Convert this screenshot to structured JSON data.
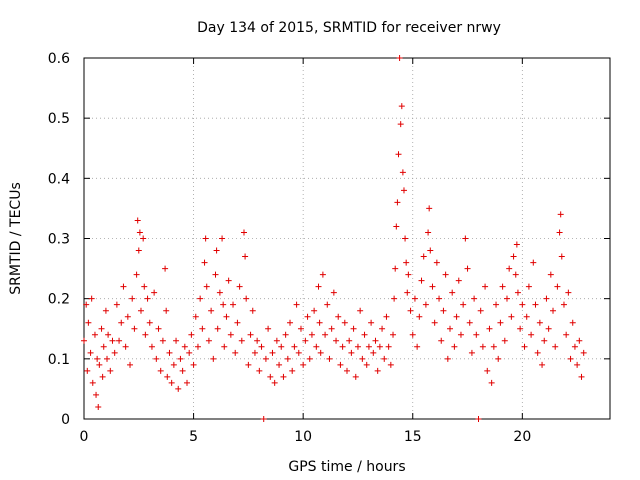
{
  "chart_data": {
    "type": "scatter",
    "title": "Day 134 of 2015, SRMTID for receiver nrwy",
    "xlabel": "GPS time / hours",
    "ylabel": "SRMTID / TECUs",
    "xlim": [
      0,
      24
    ],
    "ylim": [
      0,
      0.6
    ],
    "xticks": [
      0,
      5,
      10,
      15,
      20
    ],
    "xtick_labels": [
      "0",
      "5",
      "10",
      "15",
      "20"
    ],
    "yticks": [
      0,
      0.1,
      0.2,
      0.3,
      0.4,
      0.5,
      0.6
    ],
    "ytick_labels": [
      "0",
      "0.1",
      "0.2",
      "0.3",
      "0.4",
      "0.5",
      "0.6"
    ],
    "grid": true,
    "marker": "+",
    "color": "#e00000",
    "series": [
      {
        "name": "SRMTID",
        "points": [
          [
            0.0,
            0.13
          ],
          [
            0.1,
            0.19
          ],
          [
            0.15,
            0.08
          ],
          [
            0.2,
            0.16
          ],
          [
            0.3,
            0.11
          ],
          [
            0.35,
            0.2
          ],
          [
            0.4,
            0.06
          ],
          [
            0.5,
            0.14
          ],
          [
            0.55,
            0.04
          ],
          [
            0.6,
            0.1
          ],
          [
            0.65,
            0.02
          ],
          [
            0.7,
            0.09
          ],
          [
            0.8,
            0.15
          ],
          [
            0.85,
            0.07
          ],
          [
            0.9,
            0.12
          ],
          [
            1.0,
            0.18
          ],
          [
            1.05,
            0.1
          ],
          [
            1.1,
            0.14
          ],
          [
            1.2,
            0.08
          ],
          [
            1.3,
            0.13
          ],
          [
            1.4,
            0.11
          ],
          [
            1.5,
            0.19
          ],
          [
            1.6,
            0.13
          ],
          [
            1.7,
            0.16
          ],
          [
            1.8,
            0.22
          ],
          [
            1.9,
            0.12
          ],
          [
            2.0,
            0.17
          ],
          [
            2.1,
            0.09
          ],
          [
            2.2,
            0.2
          ],
          [
            2.3,
            0.15
          ],
          [
            2.4,
            0.24
          ],
          [
            2.45,
            0.33
          ],
          [
            2.5,
            0.28
          ],
          [
            2.55,
            0.31
          ],
          [
            2.6,
            0.18
          ],
          [
            2.7,
            0.3
          ],
          [
            2.75,
            0.22
          ],
          [
            2.8,
            0.14
          ],
          [
            2.9,
            0.2
          ],
          [
            3.0,
            0.16
          ],
          [
            3.1,
            0.12
          ],
          [
            3.2,
            0.21
          ],
          [
            3.3,
            0.1
          ],
          [
            3.4,
            0.15
          ],
          [
            3.5,
            0.08
          ],
          [
            3.6,
            0.13
          ],
          [
            3.7,
            0.25
          ],
          [
            3.75,
            0.18
          ],
          [
            3.8,
            0.07
          ],
          [
            3.9,
            0.11
          ],
          [
            4.0,
            0.06
          ],
          [
            4.1,
            0.09
          ],
          [
            4.2,
            0.13
          ],
          [
            4.3,
            0.05
          ],
          [
            4.4,
            0.1
          ],
          [
            4.5,
            0.08
          ],
          [
            4.6,
            0.12
          ],
          [
            4.7,
            0.06
          ],
          [
            4.8,
            0.11
          ],
          [
            4.9,
            0.14
          ],
          [
            5.0,
            0.09
          ],
          [
            5.1,
            0.17
          ],
          [
            5.2,
            0.12
          ],
          [
            5.3,
            0.2
          ],
          [
            5.4,
            0.15
          ],
          [
            5.5,
            0.26
          ],
          [
            5.55,
            0.3
          ],
          [
            5.6,
            0.22
          ],
          [
            5.7,
            0.13
          ],
          [
            5.8,
            0.18
          ],
          [
            5.9,
            0.1
          ],
          [
            6.0,
            0.24
          ],
          [
            6.05,
            0.28
          ],
          [
            6.1,
            0.15
          ],
          [
            6.2,
            0.21
          ],
          [
            6.3,
            0.3
          ],
          [
            6.35,
            0.19
          ],
          [
            6.4,
            0.12
          ],
          [
            6.5,
            0.17
          ],
          [
            6.6,
            0.23
          ],
          [
            6.7,
            0.14
          ],
          [
            6.8,
            0.19
          ],
          [
            6.9,
            0.11
          ],
          [
            7.0,
            0.16
          ],
          [
            7.1,
            0.22
          ],
          [
            7.2,
            0.13
          ],
          [
            7.3,
            0.31
          ],
          [
            7.35,
            0.27
          ],
          [
            7.4,
            0.2
          ],
          [
            7.5,
            0.09
          ],
          [
            7.6,
            0.14
          ],
          [
            7.7,
            0.18
          ],
          [
            7.8,
            0.11
          ],
          [
            7.9,
            0.13
          ],
          [
            8.0,
            0.08
          ],
          [
            8.1,
            0.12
          ],
          [
            8.2,
            0.0
          ],
          [
            8.3,
            0.1
          ],
          [
            8.4,
            0.15
          ],
          [
            8.5,
            0.07
          ],
          [
            8.6,
            0.11
          ],
          [
            8.7,
            0.06
          ],
          [
            8.8,
            0.13
          ],
          [
            8.9,
            0.09
          ],
          [
            9.0,
            0.12
          ],
          [
            9.1,
            0.07
          ],
          [
            9.2,
            0.14
          ],
          [
            9.3,
            0.1
          ],
          [
            9.4,
            0.16
          ],
          [
            9.5,
            0.08
          ],
          [
            9.6,
            0.12
          ],
          [
            9.7,
            0.19
          ],
          [
            9.8,
            0.11
          ],
          [
            9.9,
            0.15
          ],
          [
            10.0,
            0.09
          ],
          [
            10.1,
            0.13
          ],
          [
            10.2,
            0.17
          ],
          [
            10.3,
            0.1
          ],
          [
            10.4,
            0.14
          ],
          [
            10.5,
            0.18
          ],
          [
            10.6,
            0.12
          ],
          [
            10.7,
            0.22
          ],
          [
            10.75,
            0.16
          ],
          [
            10.8,
            0.11
          ],
          [
            10.9,
            0.24
          ],
          [
            11.0,
            0.14
          ],
          [
            11.1,
            0.19
          ],
          [
            11.2,
            0.1
          ],
          [
            11.3,
            0.15
          ],
          [
            11.4,
            0.21
          ],
          [
            11.5,
            0.13
          ],
          [
            11.6,
            0.17
          ],
          [
            11.7,
            0.09
          ],
          [
            11.8,
            0.12
          ],
          [
            11.9,
            0.16
          ],
          [
            12.0,
            0.08
          ],
          [
            12.1,
            0.13
          ],
          [
            12.2,
            0.11
          ],
          [
            12.3,
            0.15
          ],
          [
            12.4,
            0.07
          ],
          [
            12.5,
            0.12
          ],
          [
            12.6,
            0.18
          ],
          [
            12.7,
            0.1
          ],
          [
            12.8,
            0.14
          ],
          [
            12.9,
            0.09
          ],
          [
            13.0,
            0.12
          ],
          [
            13.1,
            0.16
          ],
          [
            13.2,
            0.11
          ],
          [
            13.3,
            0.13
          ],
          [
            13.4,
            0.08
          ],
          [
            13.5,
            0.12
          ],
          [
            13.6,
            0.15
          ],
          [
            13.7,
            0.1
          ],
          [
            13.8,
            0.17
          ],
          [
            13.9,
            0.12
          ],
          [
            14.0,
            0.09
          ],
          [
            14.1,
            0.14
          ],
          [
            14.15,
            0.2
          ],
          [
            14.2,
            0.25
          ],
          [
            14.25,
            0.32
          ],
          [
            14.3,
            0.36
          ],
          [
            14.35,
            0.44
          ],
          [
            14.4,
            0.6
          ],
          [
            14.45,
            0.49
          ],
          [
            14.5,
            0.52
          ],
          [
            14.55,
            0.41
          ],
          [
            14.6,
            0.38
          ],
          [
            14.65,
            0.3
          ],
          [
            14.7,
            0.26
          ],
          [
            14.75,
            0.21
          ],
          [
            14.8,
            0.24
          ],
          [
            14.9,
            0.18
          ],
          [
            15.0,
            0.14
          ],
          [
            15.1,
            0.2
          ],
          [
            15.2,
            0.12
          ],
          [
            15.3,
            0.17
          ],
          [
            15.4,
            0.23
          ],
          [
            15.5,
            0.27
          ],
          [
            15.6,
            0.19
          ],
          [
            15.7,
            0.31
          ],
          [
            15.75,
            0.35
          ],
          [
            15.8,
            0.28
          ],
          [
            15.9,
            0.22
          ],
          [
            16.0,
            0.16
          ],
          [
            16.1,
            0.26
          ],
          [
            16.2,
            0.2
          ],
          [
            16.3,
            0.13
          ],
          [
            16.4,
            0.18
          ],
          [
            16.5,
            0.24
          ],
          [
            16.6,
            0.1
          ],
          [
            16.7,
            0.15
          ],
          [
            16.8,
            0.21
          ],
          [
            16.9,
            0.12
          ],
          [
            17.0,
            0.17
          ],
          [
            17.1,
            0.23
          ],
          [
            17.2,
            0.14
          ],
          [
            17.3,
            0.19
          ],
          [
            17.4,
            0.3
          ],
          [
            17.5,
            0.25
          ],
          [
            17.6,
            0.16
          ],
          [
            17.7,
            0.11
          ],
          [
            17.8,
            0.2
          ],
          [
            17.9,
            0.14
          ],
          [
            18.0,
            0.0
          ],
          [
            18.1,
            0.18
          ],
          [
            18.2,
            0.12
          ],
          [
            18.3,
            0.22
          ],
          [
            18.4,
            0.08
          ],
          [
            18.5,
            0.15
          ],
          [
            18.6,
            0.06
          ],
          [
            18.7,
            0.12
          ],
          [
            18.8,
            0.19
          ],
          [
            18.9,
            0.1
          ],
          [
            19.0,
            0.16
          ],
          [
            19.1,
            0.22
          ],
          [
            19.2,
            0.13
          ],
          [
            19.3,
            0.2
          ],
          [
            19.4,
            0.25
          ],
          [
            19.5,
            0.17
          ],
          [
            19.6,
            0.27
          ],
          [
            19.7,
            0.24
          ],
          [
            19.75,
            0.29
          ],
          [
            19.8,
            0.21
          ],
          [
            19.9,
            0.15
          ],
          [
            20.0,
            0.19
          ],
          [
            20.1,
            0.12
          ],
          [
            20.2,
            0.17
          ],
          [
            20.3,
            0.22
          ],
          [
            20.4,
            0.14
          ],
          [
            20.5,
            0.26
          ],
          [
            20.6,
            0.19
          ],
          [
            20.7,
            0.11
          ],
          [
            20.8,
            0.16
          ],
          [
            20.9,
            0.09
          ],
          [
            21.0,
            0.13
          ],
          [
            21.1,
            0.2
          ],
          [
            21.2,
            0.15
          ],
          [
            21.3,
            0.24
          ],
          [
            21.4,
            0.18
          ],
          [
            21.5,
            0.12
          ],
          [
            21.6,
            0.22
          ],
          [
            21.7,
            0.31
          ],
          [
            21.75,
            0.34
          ],
          [
            21.8,
            0.27
          ],
          [
            21.9,
            0.19
          ],
          [
            22.0,
            0.14
          ],
          [
            22.1,
            0.21
          ],
          [
            22.2,
            0.1
          ],
          [
            22.3,
            0.16
          ],
          [
            22.4,
            0.12
          ],
          [
            22.5,
            0.09
          ],
          [
            22.6,
            0.13
          ],
          [
            22.7,
            0.07
          ],
          [
            22.8,
            0.11
          ]
        ]
      }
    ]
  }
}
